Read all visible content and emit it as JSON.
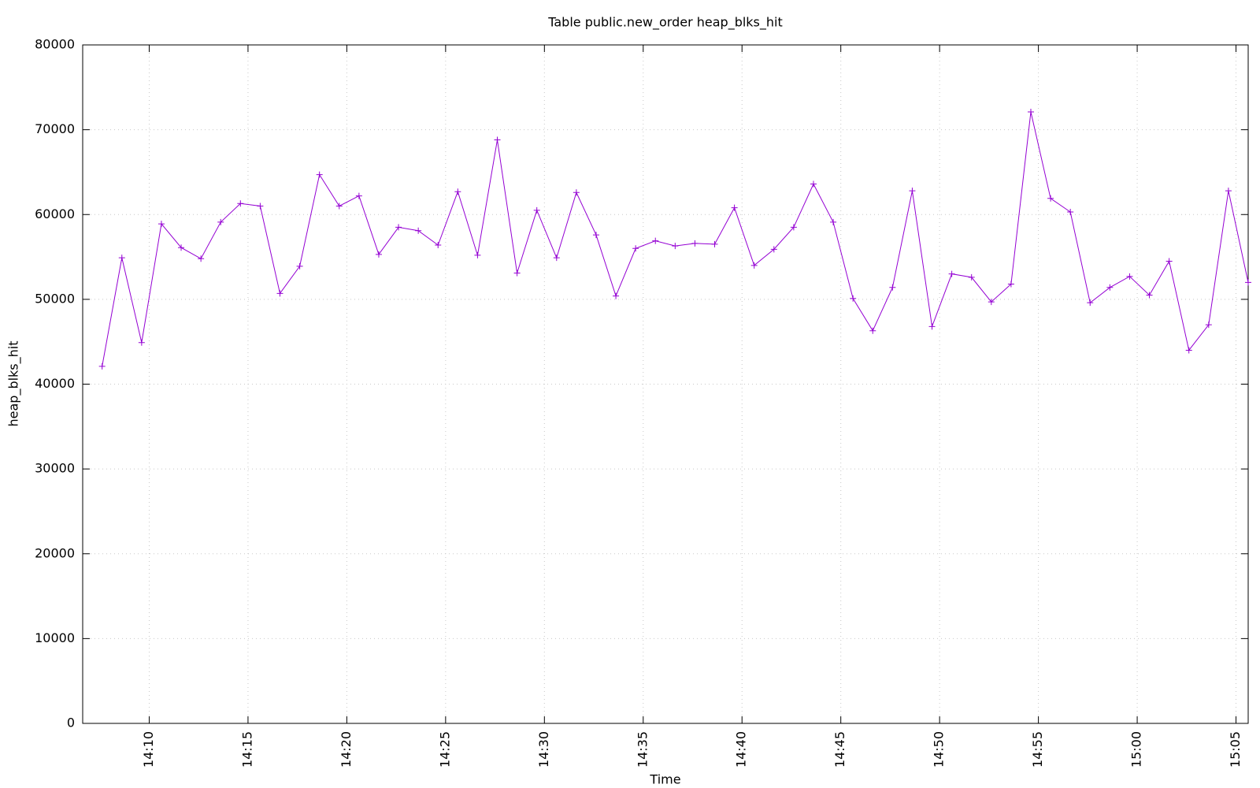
{
  "chart_data": {
    "type": "line",
    "title": "Table public.new_order heap_blks_hit",
    "x_label": "Time",
    "y_label": "heap_blks_hit",
    "x": [
      "14:07:37",
      "14:08:37",
      "14:09:37",
      "14:10:37",
      "14:11:37",
      "14:12:37",
      "14:13:37",
      "14:14:37",
      "14:15:37",
      "14:16:37",
      "14:17:37",
      "14:18:37",
      "14:19:37",
      "14:20:37",
      "14:21:37",
      "14:22:37",
      "14:23:37",
      "14:24:37",
      "14:25:37",
      "14:26:37",
      "14:27:37",
      "14:28:37",
      "14:29:37",
      "14:30:37",
      "14:31:37",
      "14:32:37",
      "14:33:37",
      "14:34:37",
      "14:35:37",
      "14:36:37",
      "14:37:37",
      "14:38:37",
      "14:39:37",
      "14:40:37",
      "14:41:37",
      "14:42:37",
      "14:43:37",
      "14:44:37",
      "14:45:37",
      "14:46:37",
      "14:47:37",
      "14:48:37",
      "14:49:37",
      "14:50:37",
      "14:51:37",
      "14:52:37",
      "14:53:37",
      "14:54:37",
      "14:55:37",
      "14:56:37",
      "14:57:37",
      "14:58:37",
      "14:59:37",
      "15:00:37",
      "15:01:37",
      "15:02:37",
      "15:03:37",
      "15:04:37",
      "15:05:37"
    ],
    "series": [
      {
        "name": "heap_blks_hit",
        "color": "#9400d3",
        "values": [
          42100,
          54900,
          44900,
          58900,
          56100,
          54800,
          59100,
          61300,
          61000,
          50700,
          53900,
          64700,
          61000,
          62200,
          55300,
          58500,
          58100,
          56400,
          62700,
          55200,
          68800,
          53100,
          60500,
          54900,
          62600,
          57600,
          50400,
          56000,
          56900,
          56300,
          56600,
          56500,
          60800,
          54000,
          55900,
          58500,
          63600,
          59100,
          50100,
          46300,
          51400,
          62800,
          46800,
          53000,
          52600,
          49700,
          51800,
          72100,
          61900,
          60300,
          49600,
          51400,
          52700,
          50500,
          54500,
          44000,
          47000,
          62800,
          52000
        ]
      }
    ],
    "xlim": [
      "14:06:38",
      "15:05:37"
    ],
    "xticks": [
      "14:10",
      "14:15",
      "14:20",
      "14:25",
      "14:30",
      "14:35",
      "14:40",
      "14:45",
      "14:50",
      "14:55",
      "15:00",
      "15:05"
    ],
    "ylim": [
      0,
      80000
    ],
    "yticks": [
      0,
      10000,
      20000,
      30000,
      40000,
      50000,
      60000,
      70000,
      80000
    ],
    "grid": true
  }
}
